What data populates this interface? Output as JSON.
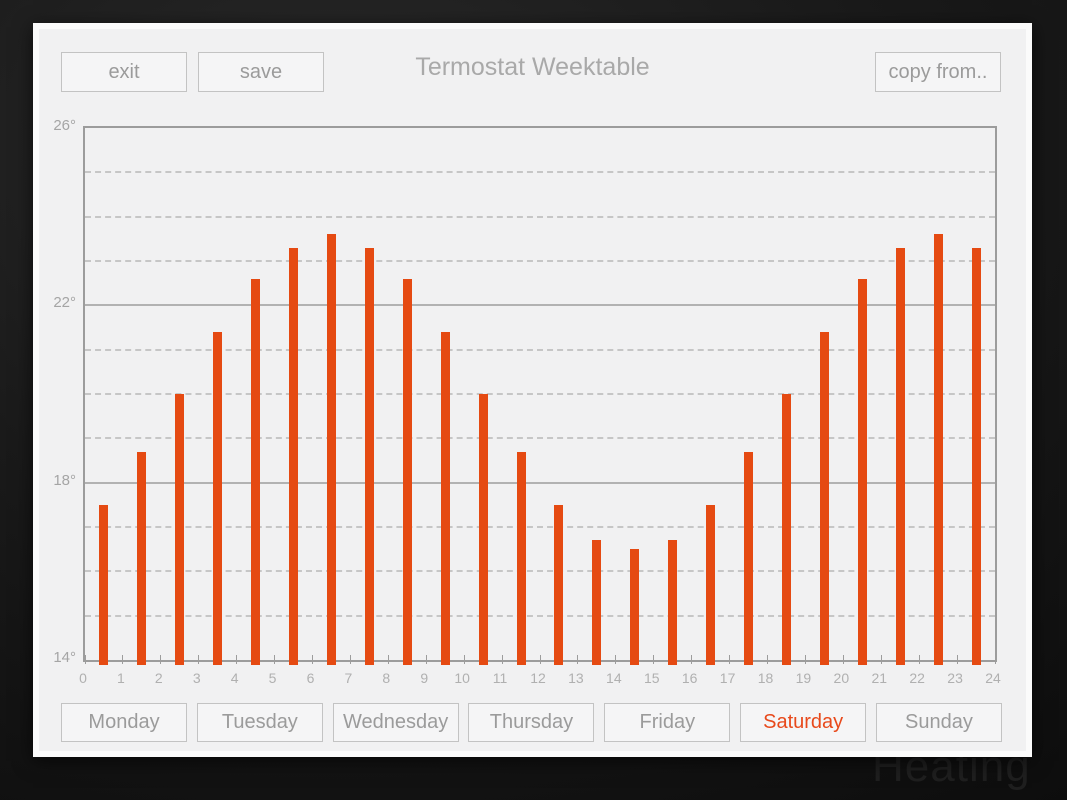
{
  "background_watermark": "Heating",
  "header": {
    "exit_label": "exit",
    "save_label": "save",
    "title": "Termostat Weektable",
    "copy_from_label": "copy from.."
  },
  "days": {
    "selected_index": 5,
    "items": [
      "Monday",
      "Tuesday",
      "Wednesday",
      "Thursday",
      "Friday",
      "Saturday",
      "Sunday"
    ]
  },
  "colors": {
    "bar": "#E54A12",
    "selected_day_text": "#E8491B",
    "panel_bg": "#f1f1f2",
    "axis": "#9c9c9c",
    "grid_major": "#b2b2b2",
    "grid_minor": "#c6c6c6"
  },
  "chart_data": {
    "type": "bar",
    "title": "Termostat Weektable",
    "x_hours": [
      0,
      1,
      2,
      3,
      4,
      5,
      6,
      7,
      8,
      9,
      10,
      11,
      12,
      13,
      14,
      15,
      16,
      17,
      18,
      19,
      20,
      21,
      22,
      23
    ],
    "values": [
      17.5,
      18.7,
      20.0,
      21.4,
      22.6,
      23.3,
      23.6,
      23.3,
      22.6,
      21.4,
      20.0,
      18.7,
      17.5,
      16.7,
      16.5,
      16.7,
      17.5,
      18.7,
      20.0,
      21.4,
      22.6,
      23.3,
      23.6,
      23.3
    ],
    "unit": "°",
    "ylim": [
      14,
      26
    ],
    "y_major_ticks": [
      14,
      18,
      22,
      26
    ],
    "y_major_labels": [
      "14°",
      "18°",
      "22°",
      "26°"
    ],
    "y_minor_step": 1,
    "x_ticks": [
      0,
      1,
      2,
      3,
      4,
      5,
      6,
      7,
      8,
      9,
      10,
      11,
      12,
      13,
      14,
      15,
      16,
      17,
      18,
      19,
      20,
      21,
      22,
      23,
      24
    ],
    "x_tick_labels": [
      "0",
      "1",
      "2",
      "3",
      "4",
      "5",
      "6",
      "7",
      "8",
      "9",
      "10",
      "11",
      "12",
      "13",
      "14",
      "15",
      "16",
      "17",
      "18",
      "19",
      "20",
      "21",
      "22",
      "23",
      "24"
    ],
    "grid": "major solid, minor dashed",
    "legend_position": "none"
  }
}
